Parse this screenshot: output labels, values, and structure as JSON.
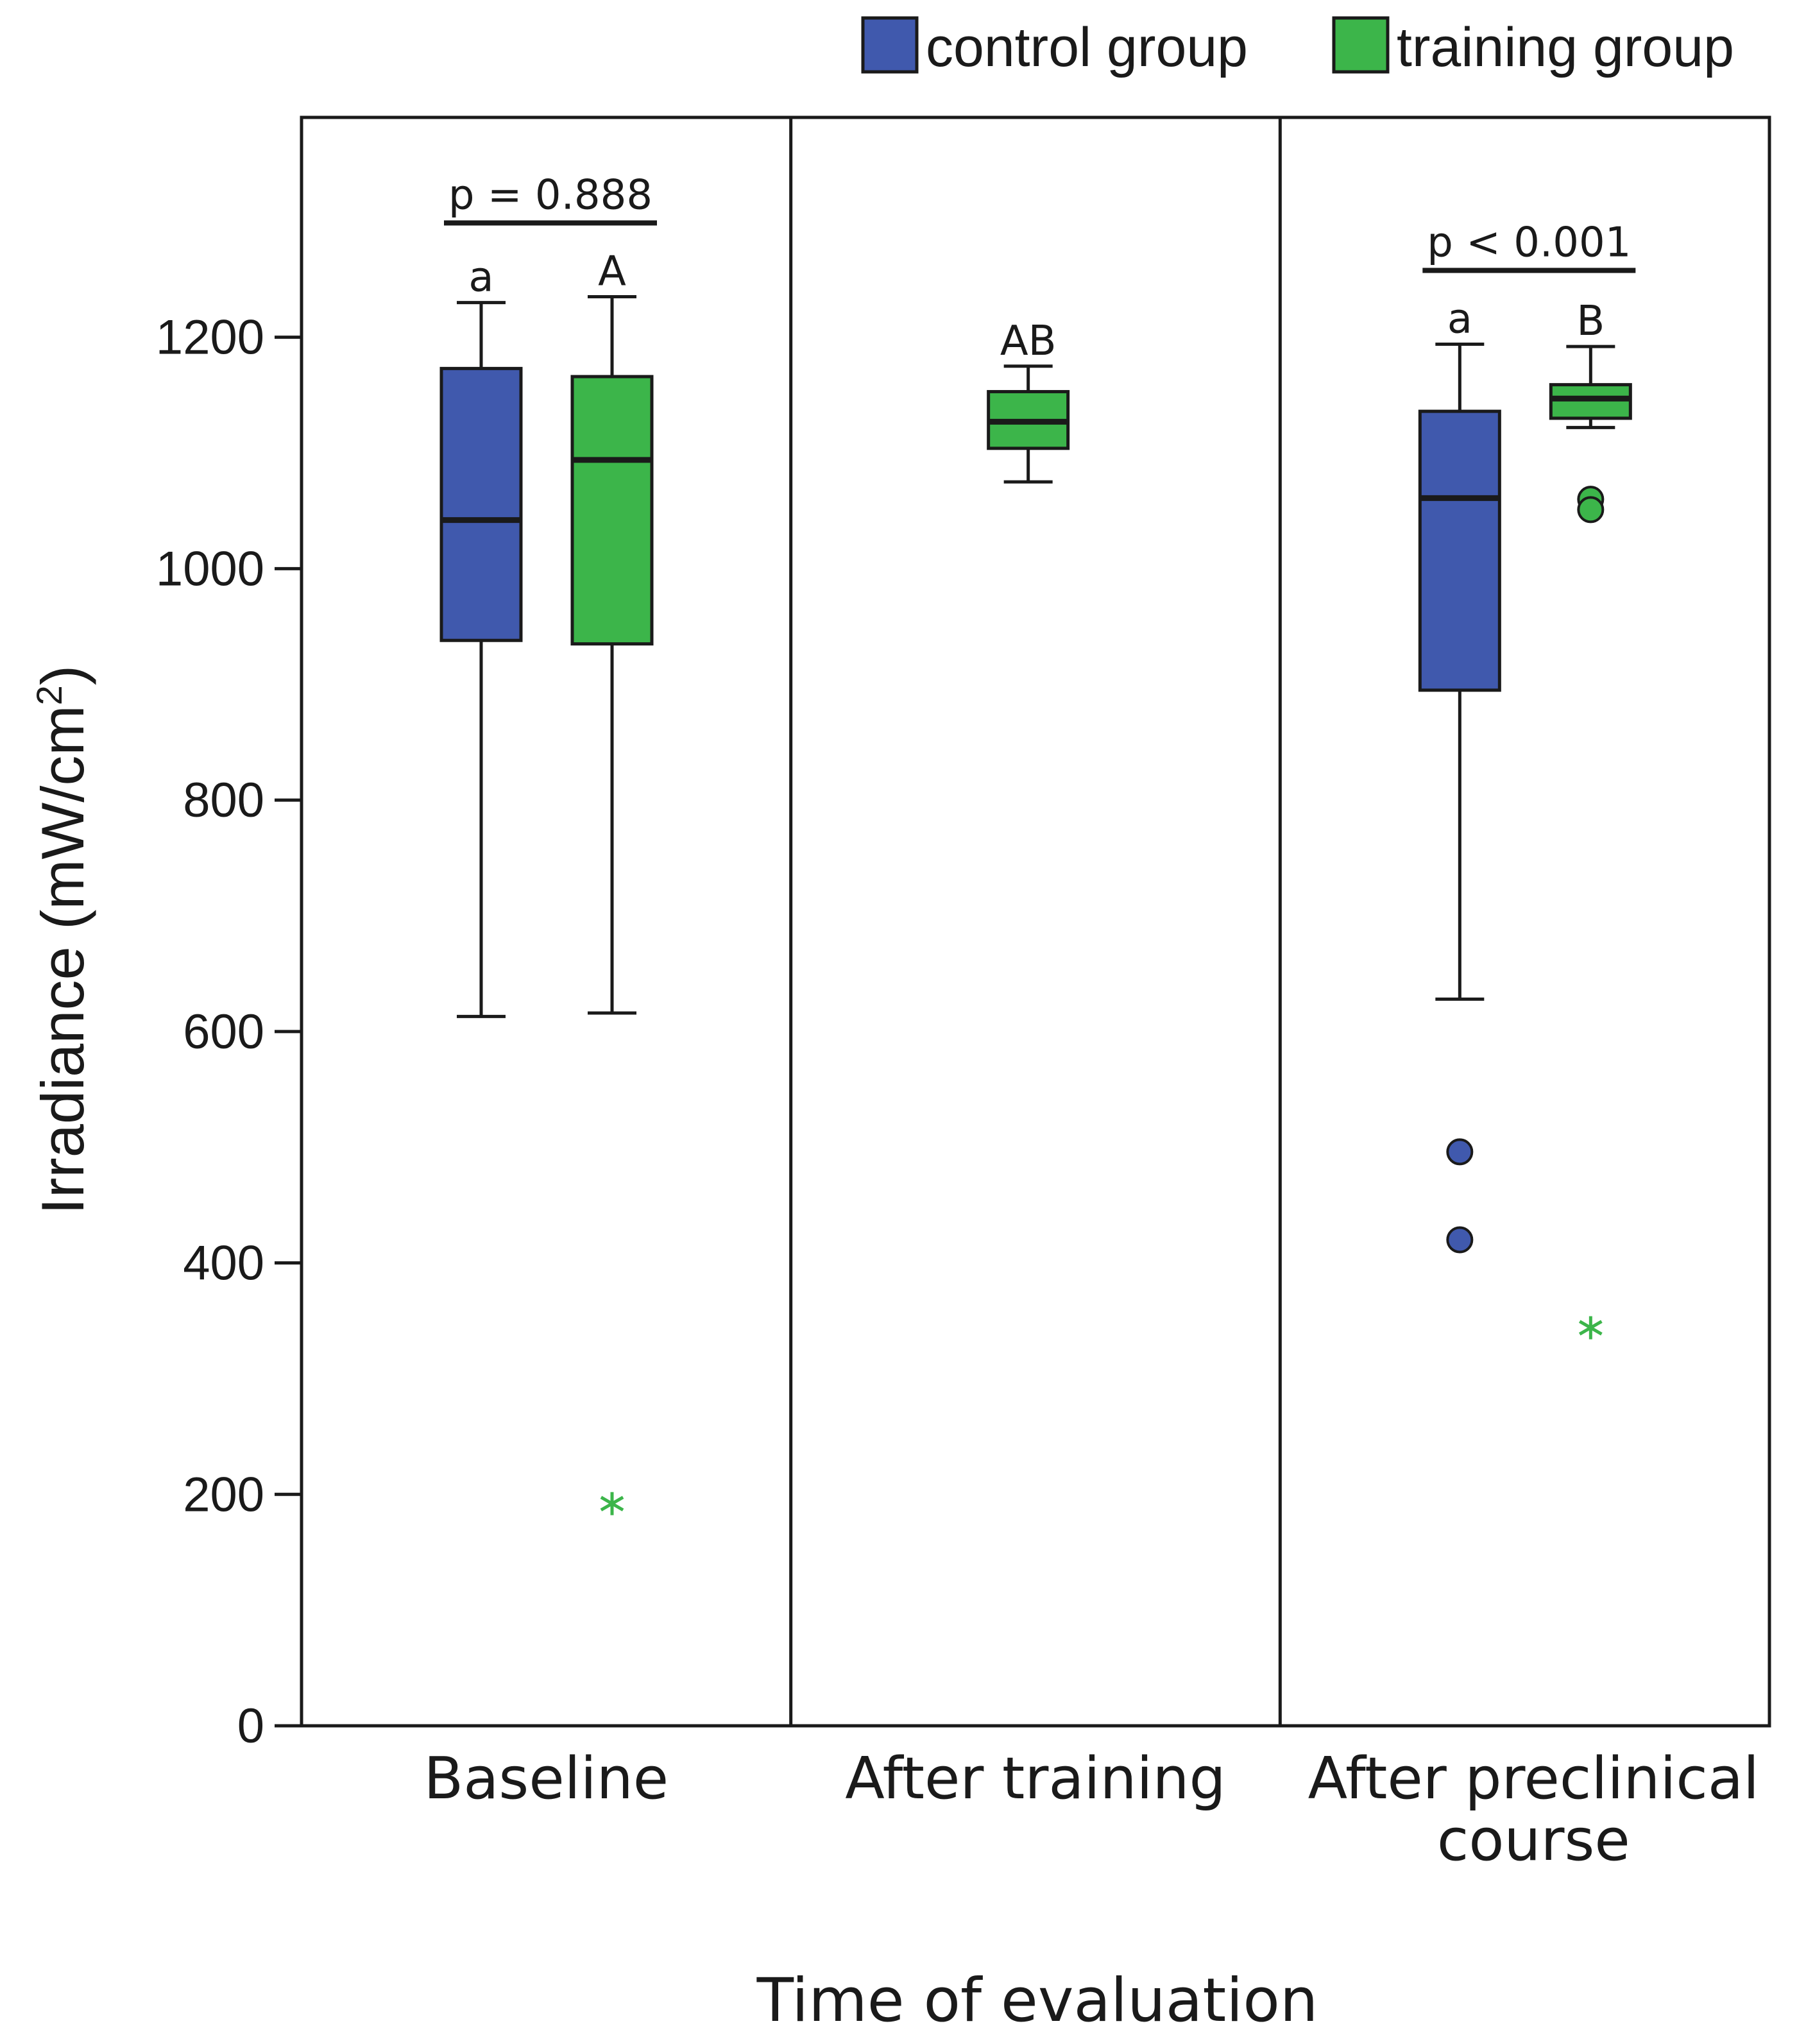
{
  "chart_data": {
    "type": "box",
    "title": "",
    "xlabel": "Time of evaluation",
    "ylabel": "Irradiance (mW/cm",
    "ylabel_superscript": "2",
    "ylabel_close": ")",
    "ylim": [
      0,
      1390
    ],
    "yticks": [
      0,
      200,
      400,
      600,
      800,
      1000,
      1200
    ],
    "ytick_labels": [
      "0",
      "200",
      "400",
      "600",
      "800",
      "1000",
      "1200"
    ],
    "legend_position": "top-right",
    "series": [
      {
        "name": "control group",
        "color": "#4059AD"
      },
      {
        "name": "training group",
        "color": "#3CB54A"
      }
    ],
    "panels": [
      {
        "label": "Baseline",
        "label_lines": [
          "Baseline"
        ],
        "comparison": "p = 0.888",
        "boxes": [
          {
            "series": "control group",
            "min": 613,
            "q1": 938,
            "median": 1042,
            "q3": 1173,
            "max": 1230,
            "letter": "a",
            "outliers": [],
            "extremes": []
          },
          {
            "series": "training group",
            "min": 616,
            "q1": 935,
            "median": 1094,
            "q3": 1166,
            "max": 1235,
            "letter": "A",
            "outliers": [],
            "extremes": [
              192
            ]
          }
        ]
      },
      {
        "label": "After training",
        "label_lines": [
          "After training"
        ],
        "comparison": "",
        "boxes": [
          {
            "series": "training group",
            "min": 1075,
            "q1": 1104,
            "median": 1127,
            "q3": 1153,
            "max": 1175,
            "letter": "AB",
            "outliers": [],
            "extremes": []
          }
        ]
      },
      {
        "label": "After preclinical course",
        "label_lines": [
          "After preclinical",
          "course"
        ],
        "comparison": "p < 0.001",
        "boxes": [
          {
            "series": "control group",
            "min": 628,
            "q1": 895,
            "median": 1061,
            "q3": 1136,
            "max": 1194,
            "letter": "a",
            "outliers": [
              496,
              420
            ],
            "extremes": []
          },
          {
            "series": "training group",
            "min": 1122,
            "q1": 1130,
            "median": 1147,
            "q3": 1159,
            "max": 1192,
            "letter": "B",
            "outliers": [
              1060,
              1051
            ],
            "extremes": [
              344
            ]
          }
        ]
      }
    ]
  }
}
